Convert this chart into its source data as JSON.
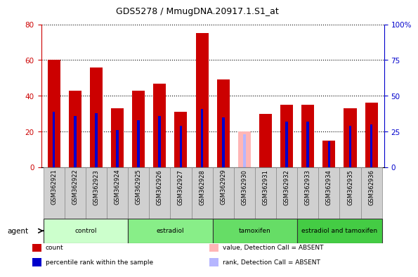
{
  "title": "GDS5278 / MmugDNA.20917.1.S1_at",
  "samples": [
    "GSM362921",
    "GSM362922",
    "GSM362923",
    "GSM362924",
    "GSM362925",
    "GSM362926",
    "GSM362927",
    "GSM362928",
    "GSM362929",
    "GSM362930",
    "GSM362931",
    "GSM362932",
    "GSM362933",
    "GSM362934",
    "GSM362935",
    "GSM362936"
  ],
  "count_values": [
    60,
    43,
    56,
    33,
    43,
    47,
    31,
    75,
    49,
    null,
    30,
    35,
    35,
    15,
    33,
    36
  ],
  "rank_values": [
    39,
    36,
    38,
    26,
    33,
    36,
    29,
    41,
    35,
    null,
    null,
    32,
    32,
    18,
    29,
    30
  ],
  "absent_count": [
    null,
    null,
    null,
    null,
    null,
    null,
    null,
    null,
    null,
    20,
    null,
    null,
    null,
    null,
    null,
    null
  ],
  "absent_rank": [
    null,
    null,
    null,
    null,
    null,
    null,
    null,
    null,
    null,
    23,
    null,
    null,
    null,
    null,
    null,
    null
  ],
  "count_color": "#cc0000",
  "rank_color": "#0000cc",
  "absent_count_color": "#ffb6b6",
  "absent_rank_color": "#b6b6ff",
  "groups": [
    {
      "label": "control",
      "start": 0,
      "end": 4,
      "color": "#ccffcc"
    },
    {
      "label": "estradiol",
      "start": 4,
      "end": 8,
      "color": "#88ee88"
    },
    {
      "label": "tamoxifen",
      "start": 8,
      "end": 12,
      "color": "#66dd66"
    },
    {
      "label": "estradiol and tamoxifen",
      "start": 12,
      "end": 16,
      "color": "#44cc44"
    }
  ],
  "ylim_left": [
    0,
    80
  ],
  "ylim_right": [
    0,
    100
  ],
  "yticks_left": [
    0,
    20,
    40,
    60,
    80
  ],
  "ytick_labels_left": [
    "0",
    "20",
    "40",
    "60",
    "80"
  ],
  "yticks_right": [
    0,
    25,
    50,
    75,
    100
  ],
  "ytick_labels_right": [
    "0",
    "25",
    "50",
    "75",
    "100%"
  ],
  "bar_width": 0.6,
  "rank_bar_width": 0.12,
  "legend_entries": [
    {
      "label": "count",
      "color": "#cc0000"
    },
    {
      "label": "percentile rank within the sample",
      "color": "#0000cc"
    },
    {
      "label": "value, Detection Call = ABSENT",
      "color": "#ffb6b6"
    },
    {
      "label": "rank, Detection Call = ABSENT",
      "color": "#b6b6ff"
    }
  ],
  "bg_color": "#ffffff",
  "xticklabel_bg": "#d0d0d0",
  "group_colors": [
    "#ccffcc",
    "#88ee88",
    "#66dd66",
    "#44cc44"
  ]
}
